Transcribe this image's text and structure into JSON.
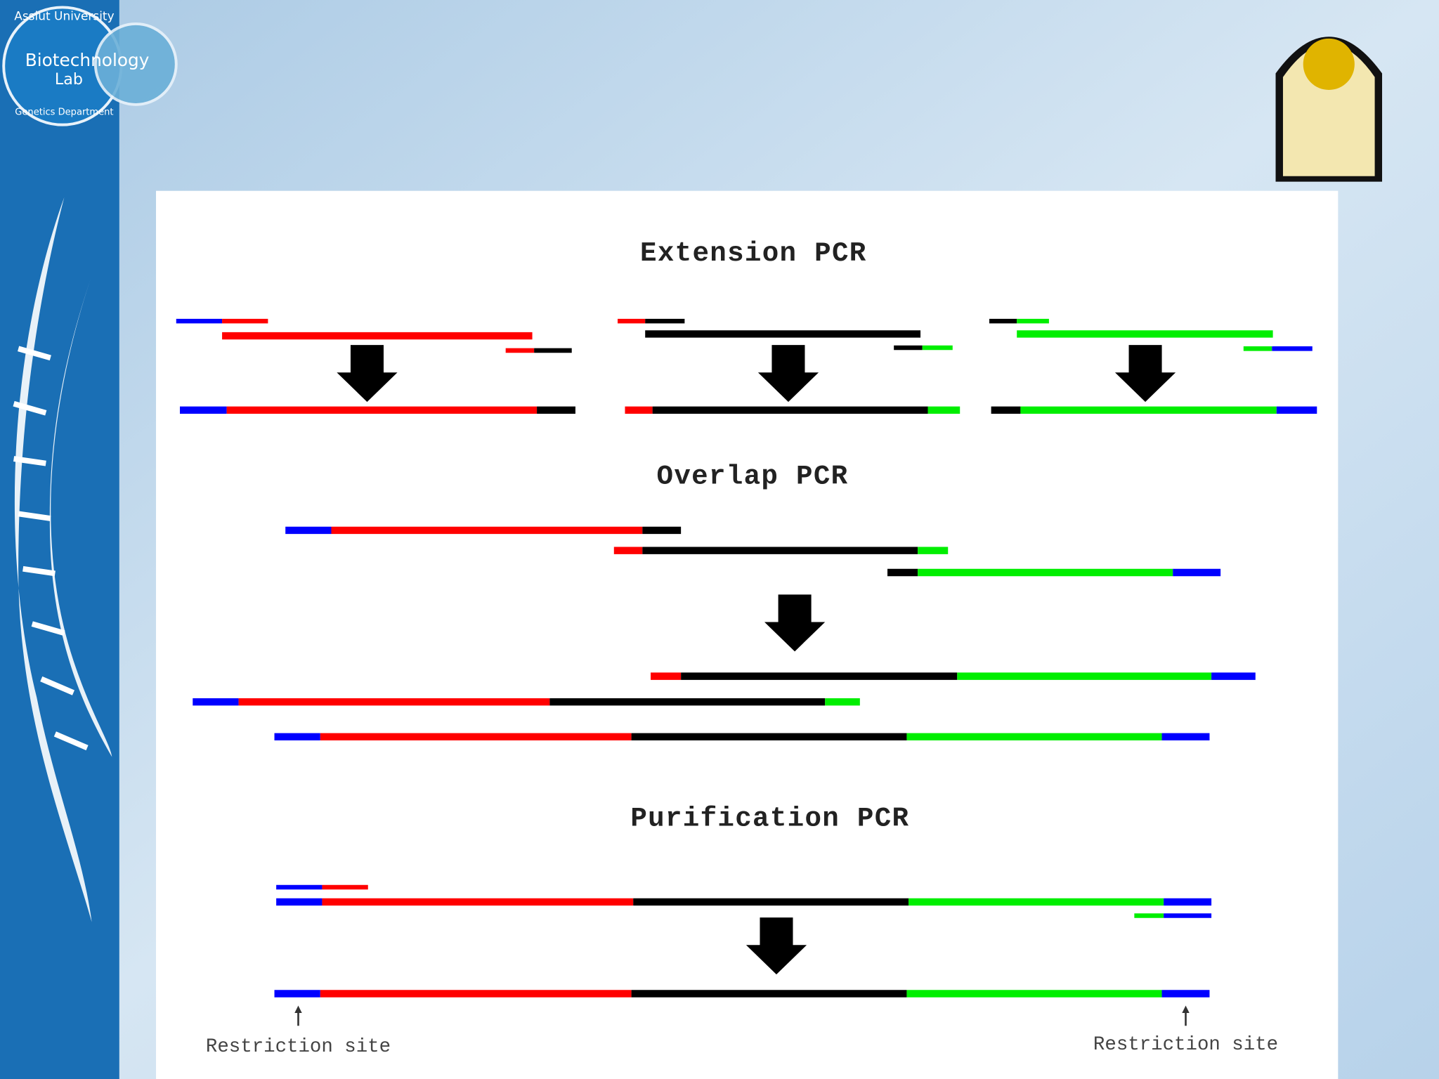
{
  "logo": {
    "university": "Assiut University",
    "lab_line1": "Biotechnology",
    "lab_line2": "Lab",
    "department": "Genetics Department"
  },
  "sections": [
    {
      "title": "Extension PCR"
    },
    {
      "title": "Overlap PCR"
    },
    {
      "title": "Purification PCR"
    }
  ],
  "labels": [
    "Restriction site",
    "Restriction site"
  ]
}
